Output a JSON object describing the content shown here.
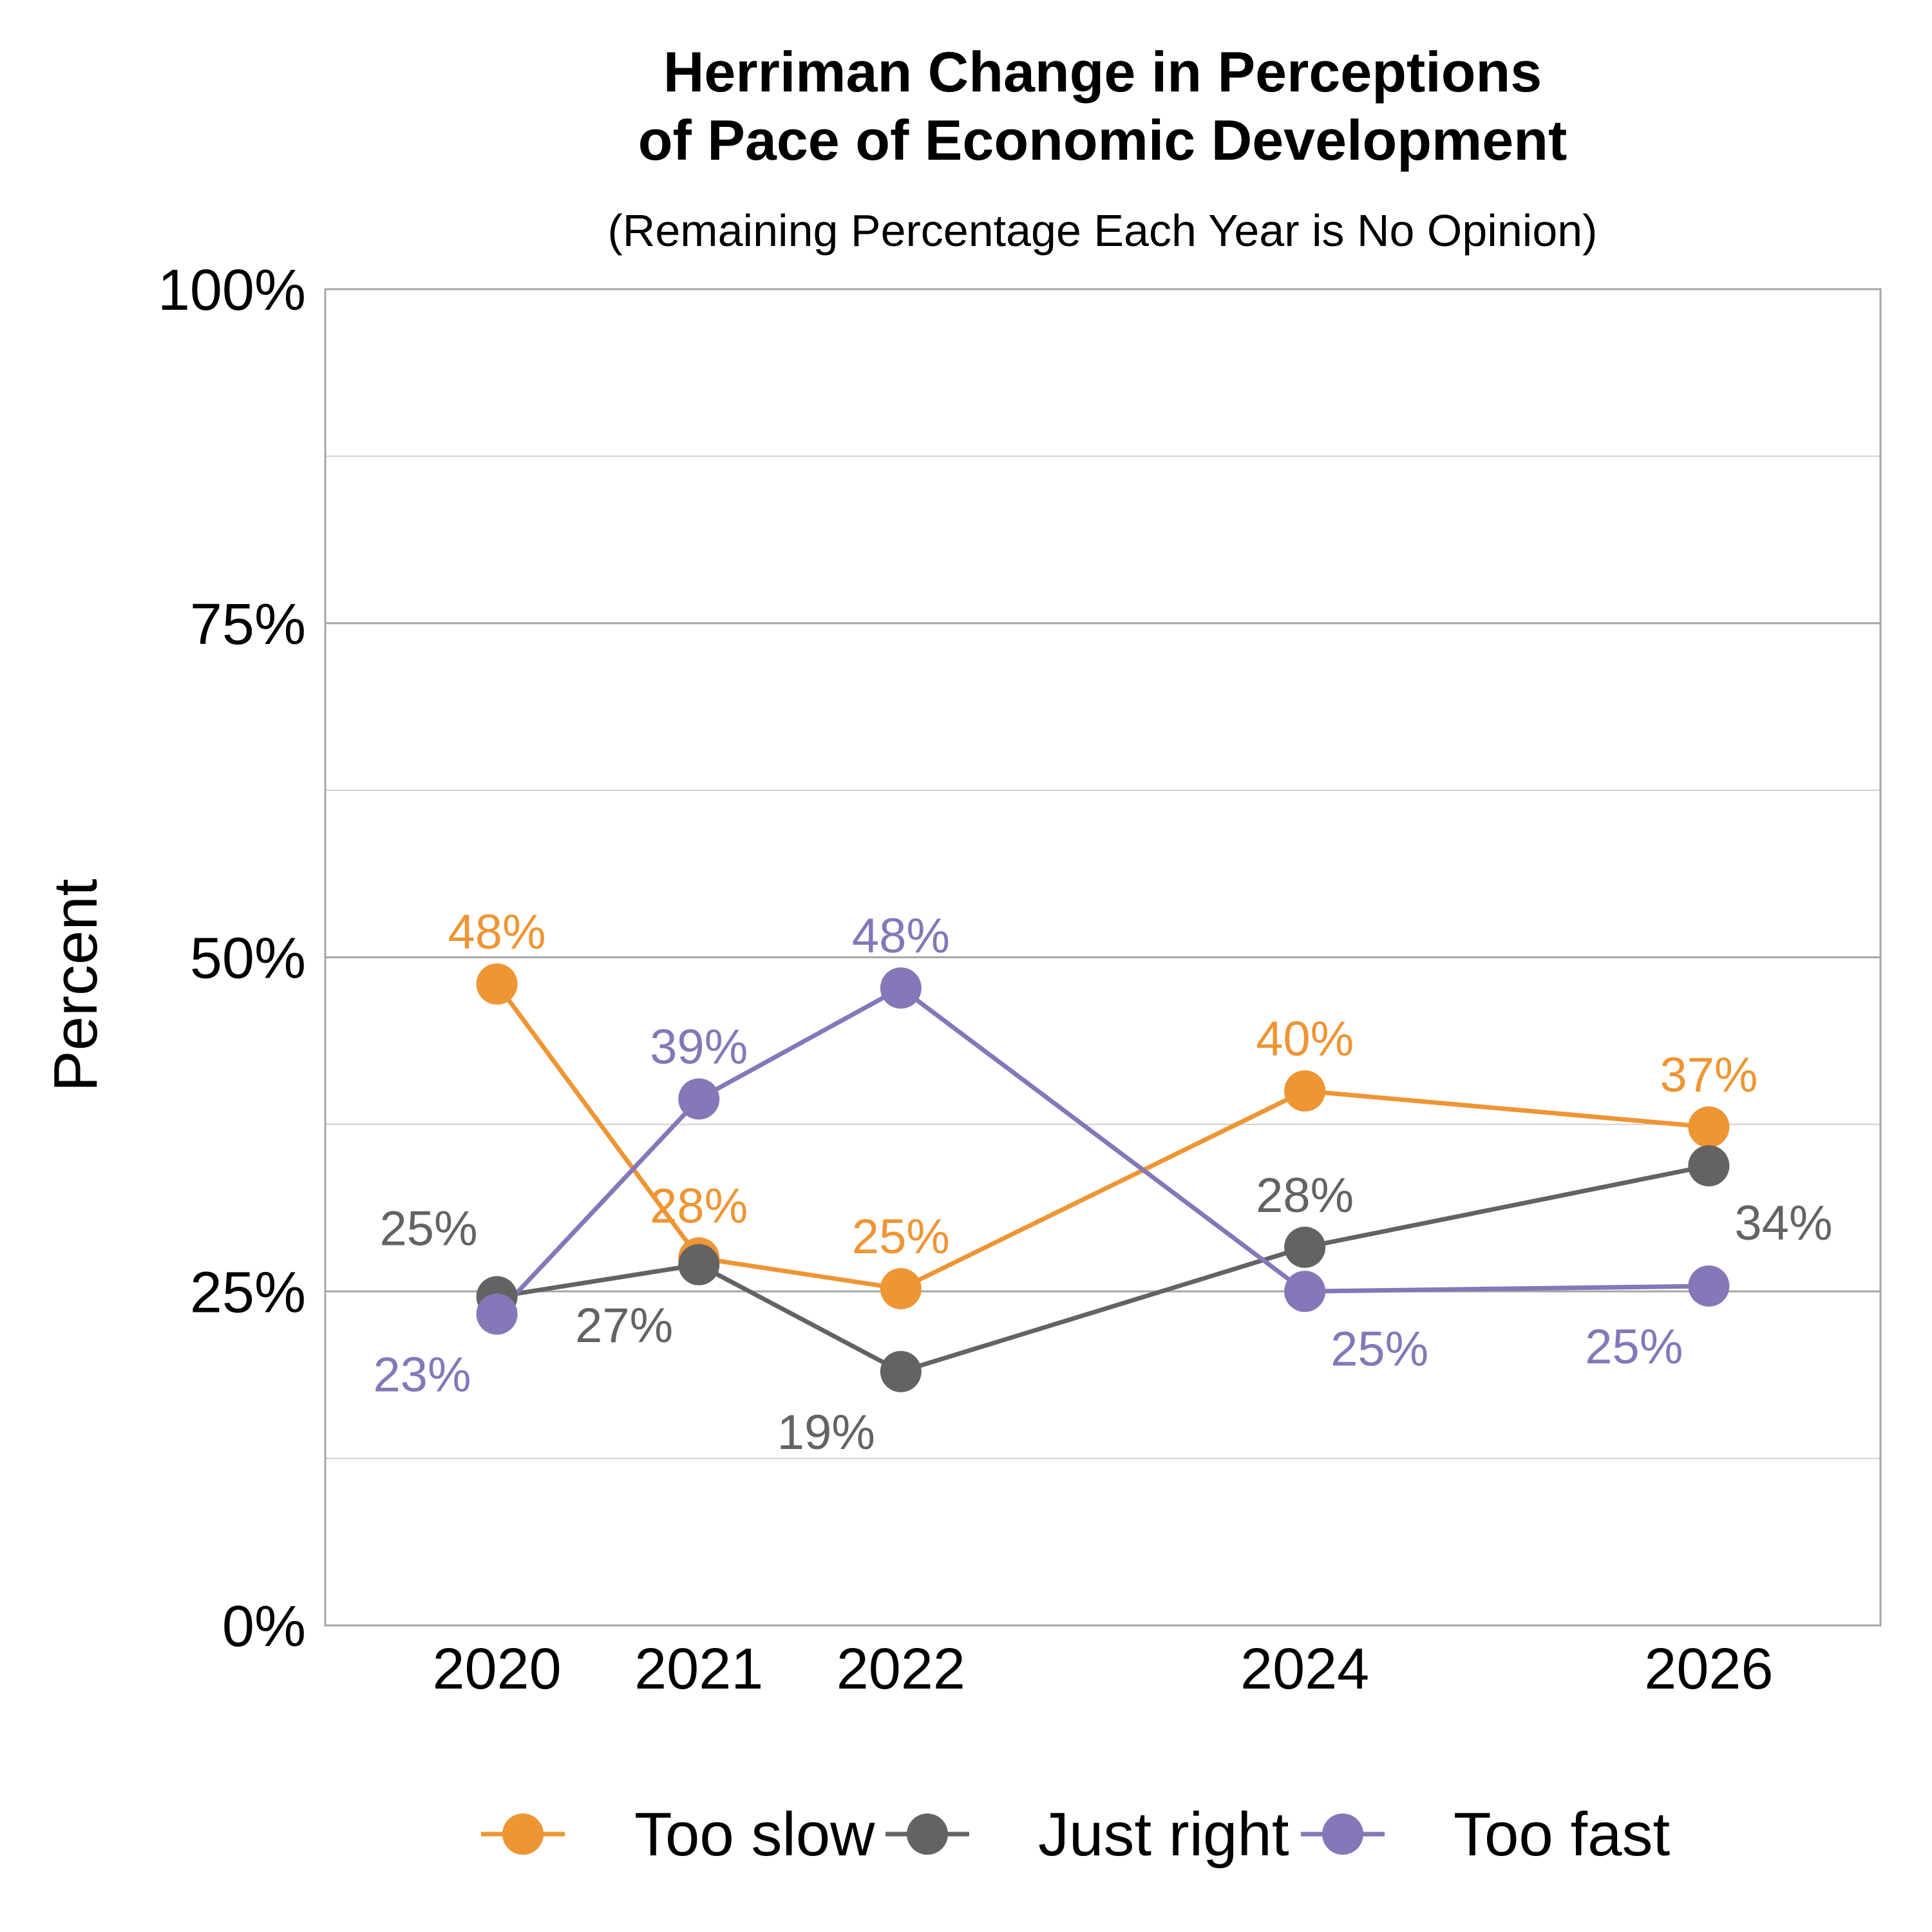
{
  "chart_data": {
    "type": "line",
    "title_lines": [
      "Herriman Change in Perceptions",
      "of Pace of Economic Development"
    ],
    "subtitle": "(Remaining Percentage Each Year is No Opinion)",
    "xlabel": "",
    "ylabel": "Percent",
    "x": [
      2020,
      2021,
      2022,
      2024,
      2026
    ],
    "x_tick_labels": [
      "2020",
      "2021",
      "2022",
      "2024",
      "2026"
    ],
    "xlim": [
      2019.15,
      2026.85
    ],
    "ylim": [
      0,
      100
    ],
    "y_ticks": [
      0,
      25,
      50,
      75,
      100
    ],
    "y_tick_labels": [
      "0%",
      "25%",
      "50%",
      "75%",
      "100%"
    ],
    "y_minor_grid": [
      12.5,
      37.5,
      62.5,
      87.5
    ],
    "grid": true,
    "legend_position": "bottom",
    "series": [
      {
        "name": "Too slow",
        "color": "#EE9534",
        "values": [
          48,
          27.5,
          25.2,
          40,
          37.3
        ],
        "labels": [
          "48%",
          "28%",
          "25%",
          "40%",
          "37%"
        ],
        "label_pos": [
          "above",
          "above",
          "above",
          "above",
          "above"
        ]
      },
      {
        "name": "Just right",
        "color": "#636363",
        "values": [
          24.6,
          27,
          19,
          28.3,
          34.4
        ],
        "labels": [
          "25%",
          "27%",
          "19%",
          "28%",
          "34%"
        ],
        "label_pos": [
          "above-left",
          "below-left",
          "below-left",
          "above",
          "below-right"
        ]
      },
      {
        "name": "Too fast",
        "color": "#8577B8",
        "values": [
          23.3,
          39.4,
          47.7,
          25,
          25.4
        ],
        "labels": [
          "23%",
          "39%",
          "48%",
          "25%",
          "25%"
        ],
        "label_pos": [
          "below-left",
          "above",
          "above",
          "below-right",
          "below-left"
        ]
      }
    ]
  }
}
